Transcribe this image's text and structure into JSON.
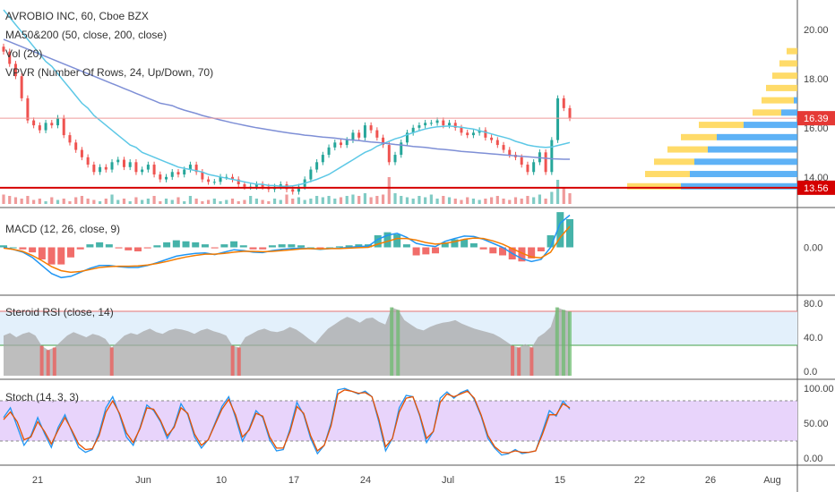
{
  "header": {
    "symbol": "AVROBIO INC, 60, Cboe BZX",
    "ma": "MA50&200 (50, close, 200, close)",
    "vol": "Vol (20)",
    "vpvr": "VPVR (Number Of Rows, 24, Up/Down, 70)"
  },
  "colors": {
    "up": "#26a69a",
    "down": "#ef5350",
    "ma50": "#5dc8e6",
    "ma200": "#7e8fd6",
    "macd": "#2196f3",
    "signal": "#f57c00",
    "rsi_fill": "#a8a8a8",
    "stoch_k": "#2196f3",
    "stoch_d": "#e65100",
    "tag_price": "#e53935",
    "tag_level": "#d50000"
  },
  "chart_data": [
    {
      "type": "candlestick",
      "title": "AVROBIO INC, 60, Cboe BZX",
      "ylim": [
        12.9,
        21.2
      ],
      "y_ticks": [
        14.0,
        16.0,
        18.0,
        20.0
      ],
      "last_price": 16.39,
      "horizontal_level": 13.56,
      "x_labels": [
        "21",
        "Jun",
        "10",
        "17",
        "24",
        "Jul",
        "15",
        "22",
        "26",
        "Aug"
      ],
      "close": [
        19.1,
        18.6,
        18.1,
        17.2,
        16.3,
        16.1,
        15.9,
        16.2,
        16.1,
        16.4,
        15.7,
        15.4,
        15.1,
        14.8,
        14.5,
        14.2,
        14.4,
        14.3,
        14.6,
        14.7,
        14.4,
        14.6,
        14.2,
        14.3,
        14.5,
        14.1,
        13.9,
        14.0,
        14.2,
        14.1,
        14.3,
        14.5,
        14.2,
        13.9,
        13.8,
        13.8,
        14.0,
        14.0,
        13.9,
        13.7,
        13.6,
        13.6,
        13.7,
        13.6,
        13.5,
        13.6,
        13.7,
        13.5,
        13.4,
        13.6,
        13.9,
        14.3,
        14.6,
        14.9,
        15.2,
        15.4,
        15.3,
        15.5,
        15.8,
        15.6,
        16.1,
        15.9,
        15.6,
        15.3,
        14.6,
        14.9,
        15.4,
        15.8,
        16.0,
        16.1,
        16.2,
        16.2,
        16.3,
        16.1,
        16.2,
        16.0,
        15.8,
        15.7,
        15.8,
        15.9,
        15.6,
        15.5,
        15.3,
        15.1,
        14.9,
        14.8,
        14.5,
        14.2,
        14.6,
        15.0,
        14.2,
        15.5,
        17.2,
        16.8,
        16.39
      ],
      "ma50": [
        20.8,
        20.5,
        20.2,
        19.9,
        19.6,
        19.3,
        19.0,
        18.7,
        18.5,
        18.2,
        17.9,
        17.6,
        17.3,
        17.0,
        16.8,
        16.5,
        16.3,
        16.1,
        15.9,
        15.7,
        15.5,
        15.3,
        15.2,
        15.0,
        14.9,
        14.8,
        14.7,
        14.6,
        14.5,
        14.4,
        14.35,
        14.3,
        14.25,
        14.2,
        14.1,
        14.05,
        14.0,
        13.95,
        13.9,
        13.85,
        13.8,
        13.75,
        13.7,
        13.7,
        13.65,
        13.65,
        13.62,
        13.62,
        13.64,
        13.68,
        13.74,
        13.82,
        13.9,
        14.0,
        14.1,
        14.25,
        14.4,
        14.55,
        14.7,
        14.85,
        15.0,
        15.1,
        15.25,
        15.35,
        15.45,
        15.55,
        15.62,
        15.72,
        15.8,
        15.88,
        15.95,
        16.0,
        16.04,
        16.06,
        16.07,
        16.05,
        16.02,
        15.98,
        15.95,
        15.88,
        15.82,
        15.75,
        15.68,
        15.62,
        15.55,
        15.45,
        15.38,
        15.3,
        15.25,
        15.22,
        15.2,
        15.22,
        15.28,
        15.34,
        15.4
      ],
      "ma200": [
        19.6,
        19.5,
        19.4,
        19.3,
        19.2,
        19.1,
        19.0,
        18.9,
        18.8,
        18.7,
        18.6,
        18.5,
        18.4,
        18.3,
        18.2,
        18.1,
        18.0,
        17.9,
        17.8,
        17.7,
        17.6,
        17.5,
        17.4,
        17.3,
        17.2,
        17.1,
        17.0,
        16.95,
        16.9,
        16.8,
        16.72,
        16.65,
        16.58,
        16.5,
        16.44,
        16.38,
        16.32,
        16.26,
        16.2,
        16.15,
        16.1,
        16.05,
        16.0,
        15.96,
        15.92,
        15.88,
        15.84,
        15.8,
        15.77,
        15.74,
        15.7,
        15.68,
        15.65,
        15.62,
        15.6,
        15.58,
        15.55,
        15.52,
        15.5,
        15.48,
        15.45,
        15.42,
        15.4,
        15.38,
        15.35,
        15.32,
        15.3,
        15.27,
        15.24,
        15.22,
        15.2,
        15.17,
        15.14,
        15.12,
        15.1,
        15.07,
        15.04,
        15.02,
        15.0,
        14.98,
        14.96,
        14.94,
        14.92,
        14.9,
        14.88,
        14.86,
        14.84,
        14.82,
        14.8,
        14.78,
        14.76,
        14.74,
        14.73,
        14.72,
        14.72
      ],
      "volume": [
        0.35,
        0.3,
        0.25,
        0.2,
        0.3,
        0.15,
        0.2,
        0.1,
        0.25,
        0.15,
        0.2,
        0.1,
        0.25,
        0.3,
        0.2,
        0.15,
        0.1,
        0.2,
        0.35,
        0.15,
        0.2,
        0.1,
        0.25,
        0.15,
        0.2,
        0.3,
        0.1,
        0.2,
        0.15,
        0.25,
        0.1,
        0.3,
        0.2,
        0.1,
        0.15,
        0.2,
        0.1,
        0.15,
        0.2,
        0.1,
        0.15,
        0.3,
        0.2,
        0.15,
        0.1,
        0.2,
        0.15,
        0.35,
        0.2,
        0.25,
        0.15,
        0.2,
        0.3,
        0.25,
        0.3,
        0.2,
        0.25,
        0.3,
        0.35,
        0.3,
        0.4,
        0.25,
        0.3,
        0.35,
        1.0,
        0.4,
        0.3,
        0.25,
        0.2,
        0.3,
        0.25,
        0.35,
        0.2,
        0.3,
        0.25,
        0.2,
        0.15,
        0.25,
        0.2,
        0.15,
        0.2,
        0.25,
        0.3,
        0.2,
        0.15,
        0.25,
        0.2,
        0.3,
        0.25,
        0.35,
        0.2,
        0.45,
        0.9,
        0.6,
        0.4
      ]
    },
    {
      "type": "line",
      "title": "MACD (12, 26, close, 9)",
      "ylim": [
        -1.1,
        0.9
      ],
      "y_ticks": [
        0.0
      ],
      "series": [
        {
          "name": "MACD",
          "values": [
            0.0,
            -0.05,
            -0.12,
            -0.25,
            -0.45,
            -0.65,
            -0.75,
            -0.72,
            -0.62,
            -0.52,
            -0.45,
            -0.45,
            -0.48,
            -0.5,
            -0.5,
            -0.45,
            -0.38,
            -0.3,
            -0.22,
            -0.18,
            -0.15,
            -0.14,
            -0.18,
            -0.12,
            -0.06,
            -0.08,
            -0.12,
            -0.13,
            -0.08,
            -0.05,
            -0.03,
            -0.02,
            -0.03,
            -0.05,
            -0.03,
            -0.02,
            0.0,
            0.02,
            0.03,
            0.2,
            0.3,
            0.35,
            0.25,
            0.1,
            0.05,
            0.02,
            0.15,
            0.22,
            0.28,
            0.27,
            0.2,
            0.1,
            0.0,
            -0.15,
            -0.28,
            -0.35,
            -0.3,
            0.0,
            0.6,
            0.8
          ]
        },
        {
          "name": "Signal",
          "values": [
            -0.02,
            -0.05,
            -0.1,
            -0.2,
            -0.33,
            -0.48,
            -0.58,
            -0.62,
            -0.6,
            -0.55,
            -0.5,
            -0.48,
            -0.47,
            -0.47,
            -0.46,
            -0.44,
            -0.4,
            -0.35,
            -0.29,
            -0.24,
            -0.2,
            -0.17,
            -0.17,
            -0.15,
            -0.12,
            -0.1,
            -0.1,
            -0.11,
            -0.1,
            -0.08,
            -0.06,
            -0.04,
            -0.03,
            -0.04,
            -0.03,
            -0.03,
            -0.02,
            -0.01,
            0.0,
            0.08,
            0.15,
            0.22,
            0.22,
            0.18,
            0.12,
            0.08,
            0.1,
            0.14,
            0.2,
            0.23,
            0.22,
            0.16,
            0.08,
            -0.03,
            -0.14,
            -0.24,
            -0.26,
            -0.12,
            0.25,
            0.52
          ]
        }
      ]
    },
    {
      "type": "area",
      "title": "Steroid RSI (close, 14)",
      "ylim": [
        -5,
        85
      ],
      "y_ticks": [
        0.0,
        40.0,
        80.0
      ],
      "levels": [
        70,
        30
      ],
      "values": [
        42,
        45,
        40,
        44,
        46,
        42,
        30,
        25,
        28,
        35,
        42,
        46,
        43,
        40,
        44,
        42,
        38,
        28,
        35,
        42,
        45,
        43,
        47,
        50,
        46,
        44,
        48,
        50,
        49,
        47,
        44,
        48,
        50,
        47,
        45,
        42,
        30,
        28,
        40,
        44,
        48,
        50,
        47,
        46,
        48,
        52,
        49,
        44,
        38,
        33,
        42,
        50,
        55,
        60,
        64,
        61,
        57,
        62,
        63,
        58,
        55,
        75,
        72,
        60,
        55,
        50,
        48,
        52,
        55,
        57,
        58,
        60,
        56,
        53,
        50,
        48,
        46,
        44,
        40,
        35,
        30,
        28,
        32,
        28,
        40,
        45,
        52,
        75,
        72,
        70
      ]
    },
    {
      "type": "line",
      "title": "Stoch (14, 3, 3)",
      "ylim": [
        -8,
        108
      ],
      "y_ticks": [
        0.0,
        50.0,
        100.0
      ],
      "levels": [
        80,
        20
      ],
      "series": [
        {
          "name": "%K",
          "values": [
            58,
            72,
            45,
            18,
            32,
            58,
            35,
            15,
            44,
            62,
            38,
            15,
            8,
            12,
            36,
            72,
            88,
            62,
            30,
            18,
            44,
            76,
            68,
            52,
            28,
            46,
            78,
            62,
            30,
            14,
            26,
            50,
            74,
            88,
            58,
            24,
            42,
            68,
            58,
            26,
            10,
            12,
            42,
            80,
            62,
            28,
            6,
            18,
            50,
            98,
            100,
            96,
            92,
            96,
            88,
            52,
            10,
            28,
            72,
            90,
            88,
            60,
            22,
            38,
            86,
            95,
            86,
            94,
            98,
            84,
            60,
            28,
            14,
            4,
            6,
            12,
            6,
            8,
            10,
            38,
            68,
            60,
            82,
            70
          ]
        },
        {
          "name": "%D",
          "values": [
            55,
            66,
            52,
            26,
            30,
            52,
            38,
            20,
            40,
            58,
            40,
            20,
            12,
            13,
            32,
            66,
            82,
            64,
            36,
            22,
            42,
            72,
            70,
            54,
            32,
            44,
            72,
            64,
            34,
            18,
            26,
            48,
            70,
            84,
            62,
            30,
            40,
            64,
            60,
            30,
            14,
            14,
            38,
            74,
            64,
            32,
            10,
            18,
            46,
            92,
            98,
            96,
            93,
            94,
            88,
            56,
            16,
            28,
            66,
            86,
            88,
            62,
            28,
            38,
            80,
            92,
            88,
            92,
            96,
            86,
            62,
            32,
            16,
            8,
            7,
            10,
            8,
            8,
            10,
            34,
            62,
            62,
            78,
            72
          ]
        }
      ]
    }
  ],
  "axis": {
    "price_tag": "16.39",
    "level_tag": "13.56",
    "price_ticks": [
      "14.00",
      "16.00",
      "18.00",
      "20.00"
    ],
    "macd_ticks": [
      "0.00"
    ],
    "rsi_ticks": [
      "0.0",
      "40.0",
      "80.0"
    ],
    "stoch_ticks": [
      "0.00",
      "50.00",
      "100.00"
    ],
    "x_labels": [
      "21",
      "Jun",
      "10",
      "17",
      "24",
      "Jul",
      "15",
      "22",
      "26",
      "Aug"
    ]
  },
  "panes": {
    "macd_title": "MACD (12, 26, close, 9)",
    "rsi_title": "Steroid RSI (close, 14)",
    "stoch_title": "Stoch (14, 3, 3)"
  }
}
